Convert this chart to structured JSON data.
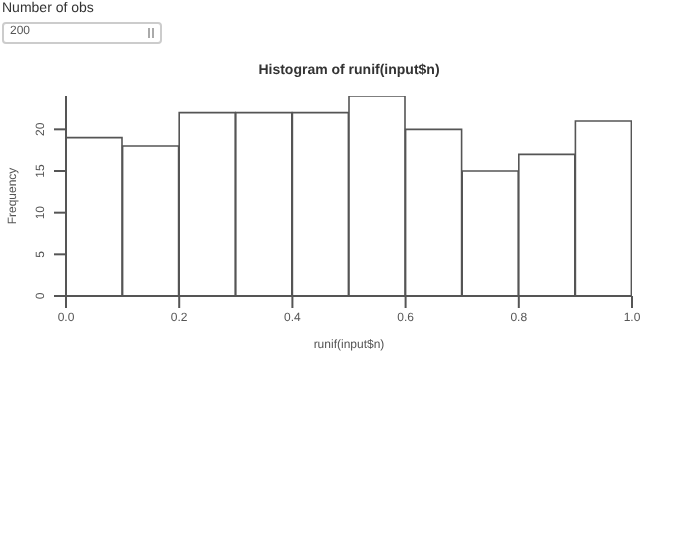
{
  "chart_data": {
    "type": "histogram",
    "title": "Histogram of runif(input$n)",
    "xlabel": "runif(input$n)",
    "ylabel": "Frequency",
    "annotations": [
      "Number of obs",
      "200"
    ],
    "bins": [
      0,
      0.1,
      0.2,
      0.3,
      0.4,
      0.5,
      0.6,
      0.7,
      0.8,
      0.9,
      1.0
    ],
    "values": [
      19,
      18,
      22,
      22,
      22,
      24,
      20,
      15,
      17,
      21
    ],
    "color": "#ffffff",
    "xlim": [
      0,
      1
    ],
    "xticks": [
      {
        "value": 0,
        "label": "0.0"
      },
      0.2,
      0.4,
      0.6,
      0.8,
      {
        "value": 1,
        "label": "1.0"
      }
    ],
    "ylim": [
      0,
      24
    ],
    "yticks": [
      0,
      5,
      10,
      15,
      20
    ],
    "grid": false,
    "legend": false
  }
}
